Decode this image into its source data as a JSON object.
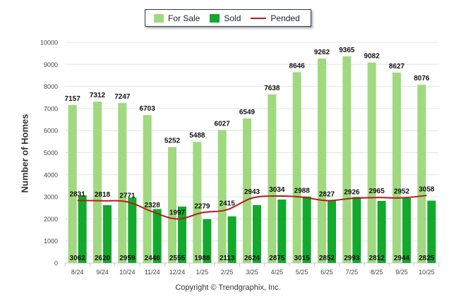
{
  "legend": {
    "for_sale": "For Sale",
    "sold": "Sold",
    "pended": "Pended"
  },
  "colors": {
    "for_sale": "#a0d97f",
    "sold": "#12a92d",
    "pended": "#b81c1c"
  },
  "copyright": "Copyright © Trendgraphix, Inc.",
  "chart_data": {
    "type": "bar",
    "title": "",
    "xlabel": "",
    "ylabel": "Number of Homes",
    "ylim": [
      0,
      10000
    ],
    "yticks": [
      0,
      1000,
      2000,
      3000,
      4000,
      5000,
      6000,
      7000,
      8000,
      9000,
      10000
    ],
    "categories": [
      "8/24",
      "9/24",
      "10/24",
      "11/24",
      "12/24",
      "1/25",
      "2/25",
      "3/25",
      "4/25",
      "5/25",
      "6/25",
      "7/25",
      "8/25",
      "9/25",
      "10/25"
    ],
    "series": [
      {
        "name": "For Sale",
        "type": "bar",
        "values": [
          7157,
          7312,
          7247,
          6703,
          5252,
          5488,
          6027,
          6549,
          7638,
          8646,
          9262,
          9365,
          9082,
          8627,
          8076
        ]
      },
      {
        "name": "Sold",
        "type": "bar",
        "values": [
          3062,
          2620,
          2959,
          2446,
          2555,
          1988,
          2113,
          2624,
          2875,
          3015,
          2852,
          2993,
          2812,
          2944,
          2825
        ]
      },
      {
        "name": "Pended",
        "type": "line",
        "values": [
          2831,
          2818,
          2771,
          2328,
          1997,
          2279,
          2415,
          2943,
          3034,
          2988,
          2827,
          2926,
          2965,
          2952,
          3058
        ]
      }
    ]
  }
}
